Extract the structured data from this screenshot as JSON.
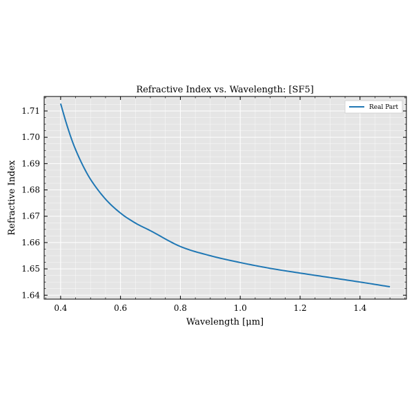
{
  "chart_data": {
    "type": "line",
    "title": "Refractive Index vs. Wavelength: [SF5]",
    "xlabel": "Wavelength [μm]",
    "ylabel": "Refractive Index",
    "xlim": [
      0.345,
      1.555
    ],
    "ylim": [
      1.6385,
      1.7155
    ],
    "xticks": [
      0.4,
      0.6,
      0.8,
      1.0,
      1.2,
      1.4
    ],
    "xtick_labels": [
      "0.4",
      "0.6",
      "0.8",
      "1.0",
      "1.2",
      "1.4"
    ],
    "yticks": [
      1.64,
      1.65,
      1.66,
      1.67,
      1.68,
      1.69,
      1.7,
      1.71
    ],
    "ytick_labels": [
      "1.64",
      "1.65",
      "1.66",
      "1.67",
      "1.68",
      "1.69",
      "1.70",
      "1.71"
    ],
    "grid": true,
    "legend_position": "top-right",
    "colors": {
      "plot_background": "#e5e5e5",
      "grid": "#ffffff",
      "series": "#1f77b4"
    },
    "series": [
      {
        "name": "Real Part",
        "x": [
          0.4,
          0.42,
          0.44,
          0.46,
          0.48,
          0.5,
          0.55,
          0.6,
          0.65,
          0.7,
          0.8,
          0.9,
          1.0,
          1.1,
          1.2,
          1.3,
          1.4,
          1.5
        ],
        "y": [
          1.7128,
          1.705,
          1.6982,
          1.6927,
          1.688,
          1.684,
          1.6765,
          1.6712,
          1.6674,
          1.6645,
          1.6585,
          1.655,
          1.6524,
          1.6502,
          1.6484,
          1.6467,
          1.645,
          1.6432
        ]
      }
    ]
  }
}
